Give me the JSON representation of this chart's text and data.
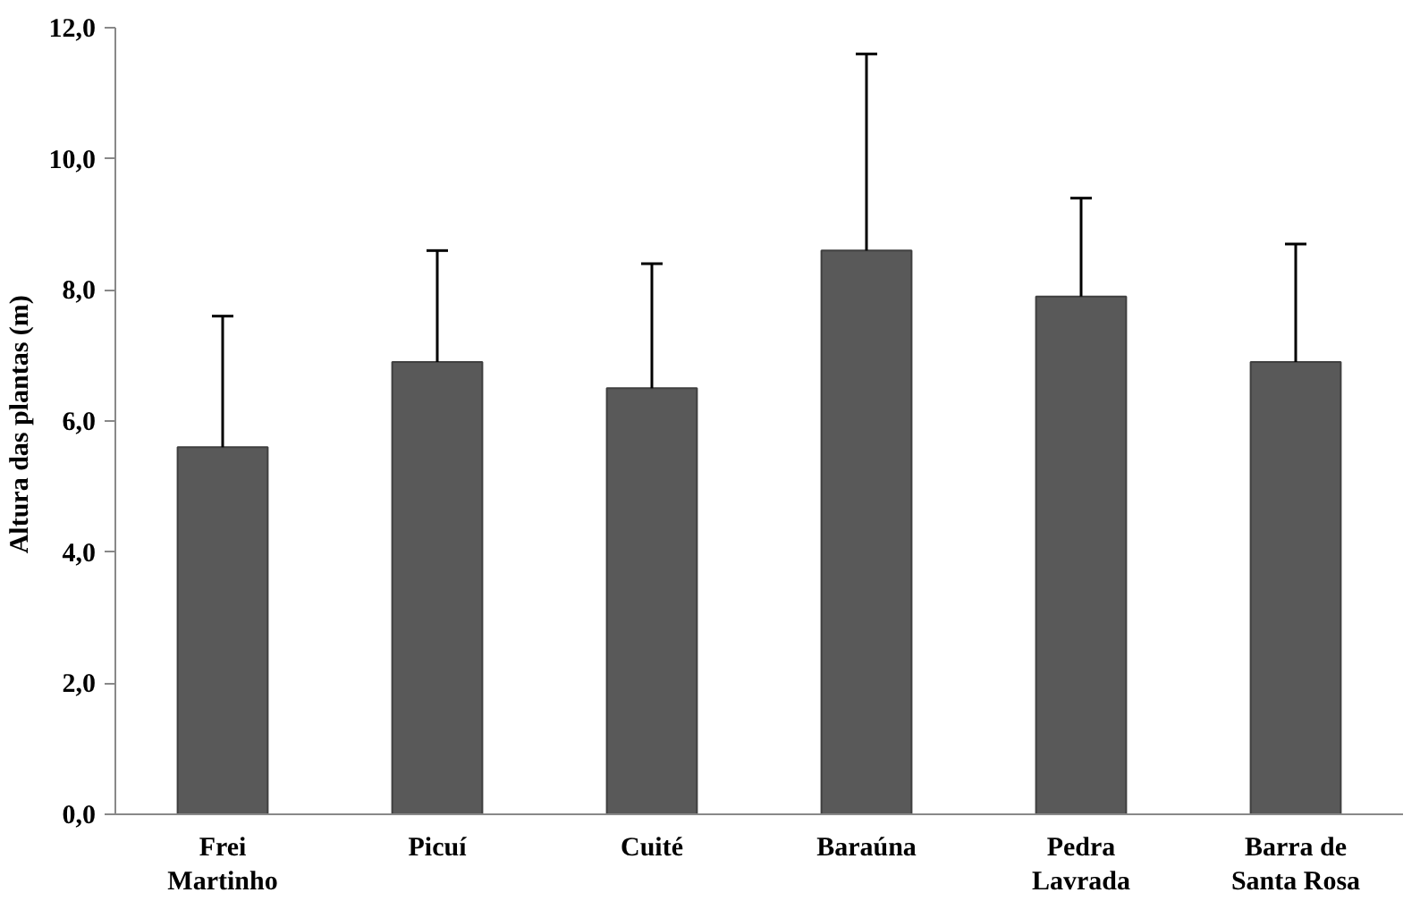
{
  "chart_data": {
    "type": "bar",
    "ylabel": "Altura das plantas  (m)",
    "categories": [
      "Frei\nMartinho",
      "Picuí",
      "Cuité",
      "Baraúna",
      "Pedra\nLavrada",
      "Barra de\nSanta Rosa"
    ],
    "values": [
      5.6,
      6.9,
      6.5,
      8.6,
      7.9,
      6.9
    ],
    "errors": [
      [
        5.6,
        7.6
      ],
      [
        6.9,
        8.6
      ],
      [
        6.5,
        8.4
      ],
      [
        8.6,
        11.6
      ],
      [
        7.9,
        9.4
      ],
      [
        6.9,
        8.7
      ]
    ],
    "color": "#595959",
    "ylim": [
      0,
      12
    ],
    "yticks": [
      {
        "value": 0,
        "label": "0,0"
      },
      {
        "value": 2,
        "label": "2,0"
      },
      {
        "value": 4,
        "label": "4,0"
      },
      {
        "value": 6,
        "label": "6,0"
      },
      {
        "value": 8,
        "label": "8,0"
      },
      {
        "value": 10,
        "label": "10,0"
      },
      {
        "value": 12,
        "label": "12,0"
      }
    ],
    "grid": false
  }
}
